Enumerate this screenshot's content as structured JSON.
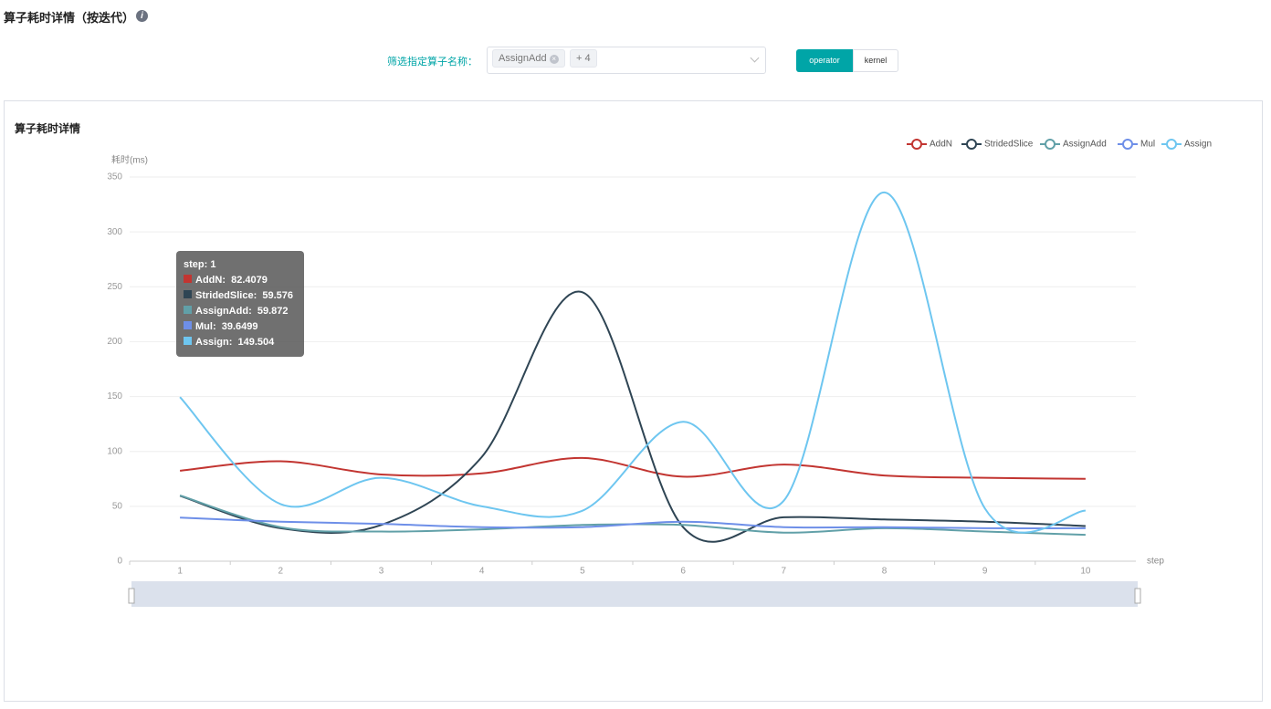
{
  "header": {
    "title": "算子耗时详情（按迭代）"
  },
  "filter": {
    "label": "筛选指定算子名称：",
    "tag": "AssignAdd",
    "more": "+ 4",
    "buttons": [
      "operator",
      "kernel"
    ]
  },
  "chart_data": {
    "type": "line",
    "title": "算子耗时详情",
    "y_label": "耗时(ms)",
    "x_label": "step",
    "smooth": true,
    "grid": true,
    "categories": [
      "1",
      "2",
      "3",
      "4",
      "5",
      "6",
      "7",
      "8",
      "9",
      "10"
    ],
    "ylim": [
      0,
      350
    ],
    "yticks": [
      0,
      50,
      100,
      150,
      200,
      250,
      300,
      350
    ],
    "series": [
      {
        "name": "AddN",
        "color": "#c23531",
        "values": [
          82.4079,
          91,
          79,
          80,
          94,
          77,
          88,
          78,
          76,
          75
        ]
      },
      {
        "name": "StridedSlice",
        "color": "#2f4554",
        "values": [
          59.576,
          30,
          33,
          95,
          245,
          31,
          40,
          38,
          36,
          32
        ]
      },
      {
        "name": "AssignAdd",
        "color": "#61a0a8",
        "values": [
          59.872,
          31,
          27,
          29,
          33,
          33,
          26,
          30,
          27,
          24
        ]
      },
      {
        "name": "Mul",
        "color": "#6e8fe8",
        "values": [
          39.6499,
          36,
          34,
          31,
          31,
          36,
          31,
          31,
          30,
          30
        ]
      },
      {
        "name": "Assign",
        "color": "#6ec6f0",
        "values": [
          149.504,
          52,
          76,
          50,
          46,
          127,
          55,
          336,
          48,
          46
        ]
      }
    ],
    "tooltip": {
      "title": "step: 1"
    }
  }
}
